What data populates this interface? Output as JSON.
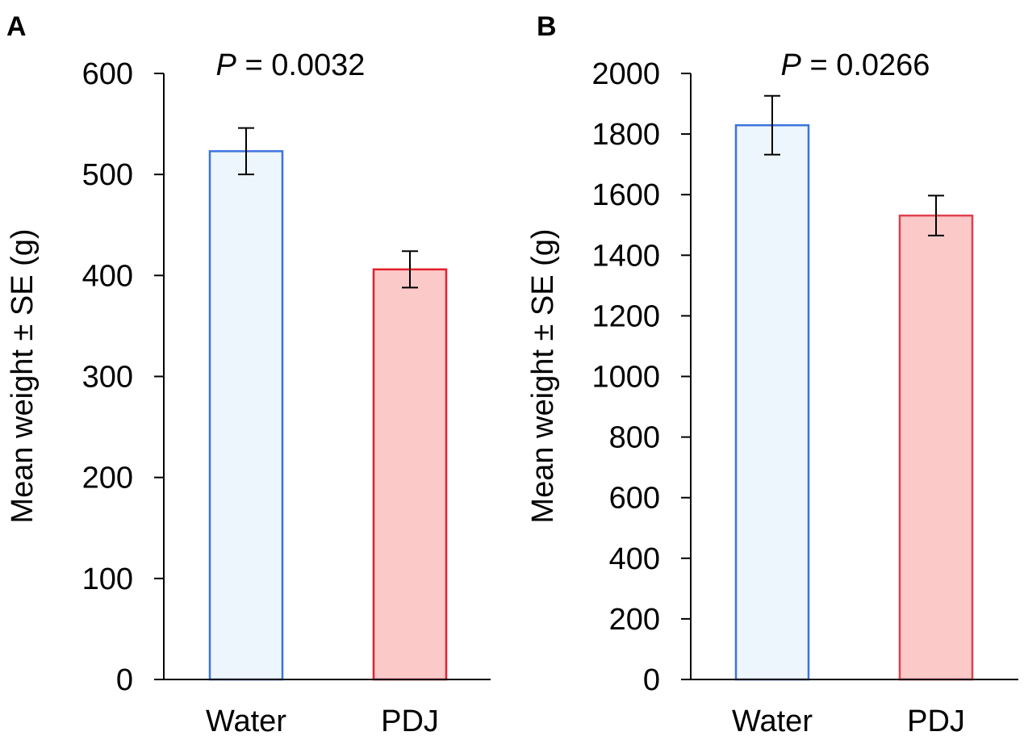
{
  "chart_data": [
    {
      "type": "bar",
      "panel": "A",
      "annotation": {
        "prefix": "P",
        "text": " = 0.0032"
      },
      "ylabel": "Mean weight ± SE (g)",
      "xlabel": "",
      "ylim": [
        0,
        600
      ],
      "yticks": [
        0,
        100,
        200,
        300,
        400,
        500,
        600
      ],
      "categories": [
        "Water",
        "PDJ"
      ],
      "values": [
        523,
        406
      ],
      "errors": [
        23,
        18
      ],
      "colors": {
        "fill": [
          "#eef6fd",
          "#fcc9c9"
        ],
        "stroke": [
          "#3b73e0",
          "#e41f2b"
        ]
      }
    },
    {
      "type": "bar",
      "panel": "B",
      "annotation": {
        "prefix": "P",
        "text": " = 0.0266"
      },
      "ylabel": "Mean weight ± SE (g)",
      "xlabel": "",
      "ylim": [
        0,
        2000
      ],
      "yticks": [
        0,
        200,
        400,
        600,
        800,
        1000,
        1200,
        1400,
        1600,
        1800,
        2000
      ],
      "categories": [
        "Water",
        "PDJ"
      ],
      "values": [
        1829,
        1531
      ],
      "errors": [
        97,
        66
      ],
      "colors": {
        "fill": [
          "#eef6fd",
          "#fcc9c9"
        ],
        "stroke": [
          "#3b73e0",
          "#e0404f"
        ]
      }
    }
  ]
}
